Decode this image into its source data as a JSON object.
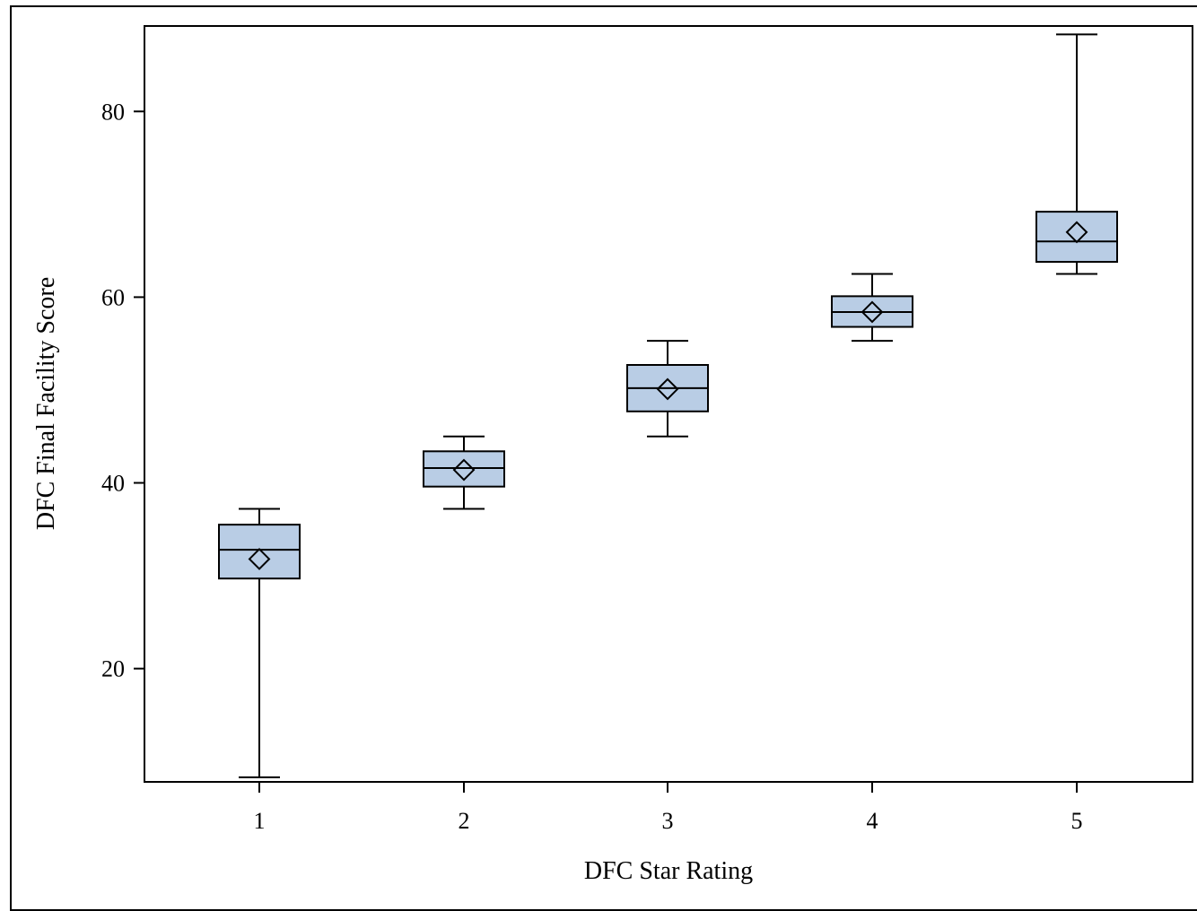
{
  "chart_data": {
    "type": "box",
    "title": "",
    "xlabel": "DFC Star Rating",
    "ylabel": "DFC Final Facility Score",
    "categories": [
      "1",
      "2",
      "3",
      "4",
      "5"
    ],
    "yticks": [
      20,
      40,
      60,
      80
    ],
    "ytick_labels": [
      "20",
      "40",
      "60",
      "80"
    ],
    "ylim": [
      7.8,
      89.2
    ],
    "grid": false,
    "legend": "none",
    "box_fill": "#b9cde5",
    "stroke_color": "#000000",
    "boxes": [
      {
        "category": "1",
        "whisker_low": 8.3,
        "q1": 29.7,
        "median": 32.8,
        "q3": 35.5,
        "whisker_high": 37.2,
        "mean": 31.8
      },
      {
        "category": "2",
        "whisker_low": 37.2,
        "q1": 39.6,
        "median": 41.6,
        "q3": 43.4,
        "whisker_high": 45.0,
        "mean": 41.4
      },
      {
        "category": "3",
        "whisker_low": 45.0,
        "q1": 47.7,
        "median": 50.2,
        "q3": 52.7,
        "whisker_high": 55.3,
        "mean": 50.1
      },
      {
        "category": "4",
        "whisker_low": 55.3,
        "q1": 56.8,
        "median": 58.4,
        "q3": 60.1,
        "whisker_high": 62.5,
        "mean": 58.4
      },
      {
        "category": "5",
        "whisker_low": 62.5,
        "q1": 63.8,
        "median": 66.0,
        "q3": 69.2,
        "whisker_high": 88.3,
        "mean": 67.0
      }
    ]
  }
}
